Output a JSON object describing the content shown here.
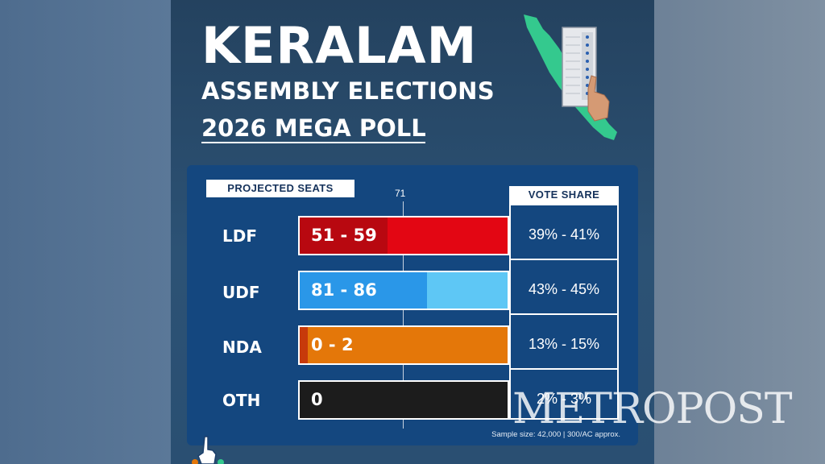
{
  "header": {
    "title": "KERALAM",
    "subtitle": "ASSEMBLY ELECTIONS",
    "poll_title": "2026 MEGA POLL"
  },
  "panel": {
    "seats_label": "PROJECTED SEATS",
    "majority_label": "71",
    "vote_share_label": "VOTE SHARE",
    "sample_note": "Sample size: 42,000 | 300/AC approx."
  },
  "watermark": "METROPOST",
  "chart_data": {
    "type": "bar",
    "orientation": "horizontal",
    "title": "",
    "categories": [
      "LDF",
      "UDF",
      "NDA",
      "OTH"
    ],
    "series": [
      {
        "name": "PROJECTED SEATS",
        "ranges": [
          [
            51,
            59
          ],
          [
            81,
            86
          ],
          [
            0,
            2
          ],
          [
            0,
            0
          ]
        ],
        "labels": [
          "51 - 59",
          "81 - 86",
          "0 - 2",
          "0"
        ]
      },
      {
        "name": "VOTE SHARE",
        "labels": [
          "39% - 41%",
          "43% - 45%",
          "13% - 15%",
          "2% - 3%"
        ]
      }
    ],
    "majority_mark": 71,
    "xlim": [
      0,
      140
    ],
    "colors": {
      "LDF": {
        "main": "#e30613",
        "low": "#b80810"
      },
      "UDF": {
        "main": "#2a97e8",
        "high": "#5ec7f5"
      },
      "NDA": {
        "main": "#e47709",
        "low": "#c73a0b"
      },
      "OTH": {
        "main": "#1c1c1c"
      }
    }
  },
  "icons": {
    "map": "kerala-map-icon",
    "evm": "voting-machine-icon",
    "hand": "voting-hand-icon"
  }
}
